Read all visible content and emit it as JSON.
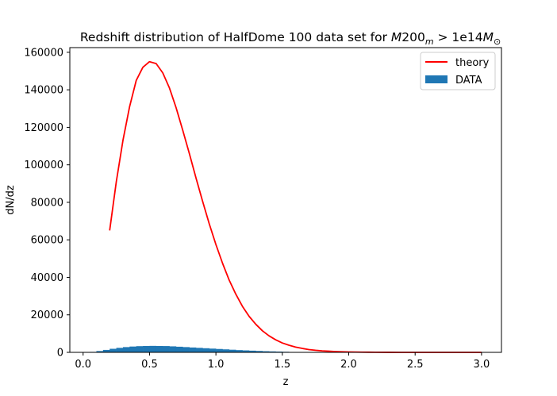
{
  "chart_data": {
    "type": "line",
    "title": {
      "prefix": "Redshift distribution of HalfDome 100 data set for ",
      "math_base": "M",
      "math_num": "200",
      "math_sub": "m",
      "math_op": " > 1e14",
      "math_base2": "M",
      "math_sub2": "⊙"
    },
    "xlabel": "z",
    "ylabel": "dN/dz",
    "xlim": [
      -0.1,
      3.15
    ],
    "ylim": [
      0,
      162500
    ],
    "xticks": [
      0.0,
      0.5,
      1.0,
      1.5,
      2.0,
      2.5,
      3.0
    ],
    "xtick_labels": [
      "0.0",
      "0.5",
      "1.0",
      "1.5",
      "2.0",
      "2.5",
      "3.0"
    ],
    "yticks": [
      0,
      20000,
      40000,
      60000,
      80000,
      100000,
      120000,
      140000,
      160000
    ],
    "ytick_labels": [
      "0",
      "20000",
      "40000",
      "60000",
      "80000",
      "100000",
      "120000",
      "140000",
      "160000"
    ],
    "grid": false,
    "legend_position": "top-right",
    "series": [
      {
        "name": "theory",
        "kind": "line",
        "color": "#ff0000",
        "x": [
          0.2,
          0.25,
          0.3,
          0.35,
          0.4,
          0.45,
          0.5,
          0.55,
          0.6,
          0.65,
          0.7,
          0.75,
          0.8,
          0.85,
          0.9,
          0.95,
          1.0,
          1.05,
          1.1,
          1.15,
          1.2,
          1.25,
          1.3,
          1.35,
          1.4,
          1.45,
          1.5,
          1.55,
          1.6,
          1.65,
          1.7,
          1.75,
          1.8,
          1.85,
          1.9,
          1.95,
          2.0,
          2.05,
          2.1,
          2.15,
          2.2,
          2.3,
          2.4,
          2.5,
          2.6,
          2.7,
          2.8,
          2.9,
          3.0
        ],
        "y": [
          65000,
          91000,
          113000,
          131000,
          145000,
          152000,
          155000,
          154000,
          149000,
          141000,
          130500,
          118500,
          106000,
          93000,
          80500,
          68500,
          57500,
          47500,
          38500,
          31000,
          24500,
          19200,
          15000,
          11500,
          8800,
          6700,
          5000,
          3800,
          2800,
          2100,
          1500,
          1100,
          800,
          600,
          420,
          300,
          210,
          150,
          100,
          70,
          50,
          25,
          12,
          6,
          3,
          1.5,
          0.8,
          0.4,
          0.2
        ]
      },
      {
        "name": "DATA",
        "kind": "histogram",
        "color": "#1f77b4",
        "bin_width": 0.05,
        "bin_starts": [
          0.05,
          0.1,
          0.15,
          0.2,
          0.25,
          0.3,
          0.35,
          0.4,
          0.45,
          0.5,
          0.55,
          0.6,
          0.65,
          0.7,
          0.75,
          0.8,
          0.85,
          0.9,
          0.95,
          1.0,
          1.05,
          1.1,
          1.15,
          1.2,
          1.25,
          1.3,
          1.35,
          1.4,
          1.45,
          1.5,
          1.55
        ],
        "counts": [
          250,
          700,
          1300,
          1900,
          2400,
          2800,
          3100,
          3300,
          3400,
          3450,
          3400,
          3350,
          3200,
          3000,
          2800,
          2600,
          2400,
          2200,
          2000,
          1800,
          1600,
          1400,
          1200,
          1050,
          900,
          750,
          600,
          500,
          400,
          300,
          200
        ]
      }
    ]
  }
}
